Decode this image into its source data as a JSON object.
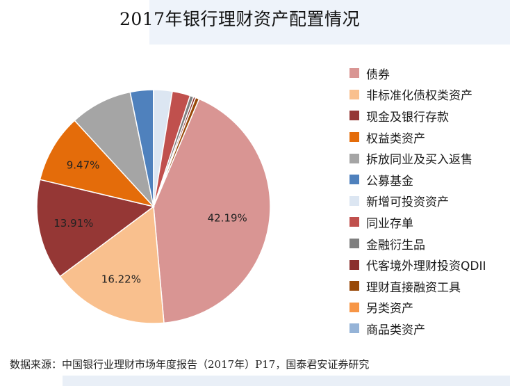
{
  "chart_data": {
    "type": "pie",
    "title": "2017年银行理财资产配置情况",
    "slices": [
      {
        "name": "债券",
        "value": 42.19,
        "label": "42.19%",
        "color": "#d99593"
      },
      {
        "name": "非标准化债权类资产",
        "value": 16.22,
        "label": "16.22%",
        "color": "#f9c08e"
      },
      {
        "name": "现金及银行存款",
        "value": 13.91,
        "label": "13.91%",
        "color": "#953735"
      },
      {
        "name": "权益类资产",
        "value": 9.47,
        "label": "9.47%",
        "color": "#e46c0a"
      },
      {
        "name": "拆放同业及买入返售",
        "value": 8.6,
        "label": "",
        "color": "#a5a5a5"
      },
      {
        "name": "公募基金",
        "value": 3.2,
        "label": "",
        "color": "#4f81bd"
      },
      {
        "name": "新增可投资资产",
        "value": 2.6,
        "label": "",
        "color": "#dce6f2"
      },
      {
        "name": "同业存单",
        "value": 2.5,
        "label": "",
        "color": "#c0504d"
      },
      {
        "name": "金融衍生品",
        "value": 0.5,
        "label": "",
        "color": "#7f7f7f"
      },
      {
        "name": "代客境外理财投资QDII",
        "value": 0.3,
        "label": "",
        "color": "#8b2f2d"
      },
      {
        "name": "理财直接融资工具",
        "value": 0.5,
        "label": "",
        "color": "#984807"
      },
      {
        "name": "另类资产",
        "value": 0.01,
        "label": "",
        "color": "#f79646"
      },
      {
        "name": "商品类资产",
        "value": 0.0,
        "label": "",
        "color": "#95b3d7"
      }
    ],
    "legend_position": "right"
  },
  "source_note": "数据来源：中国银行业理财市场年度报告（2017年）P17，国泰君安证券研究"
}
